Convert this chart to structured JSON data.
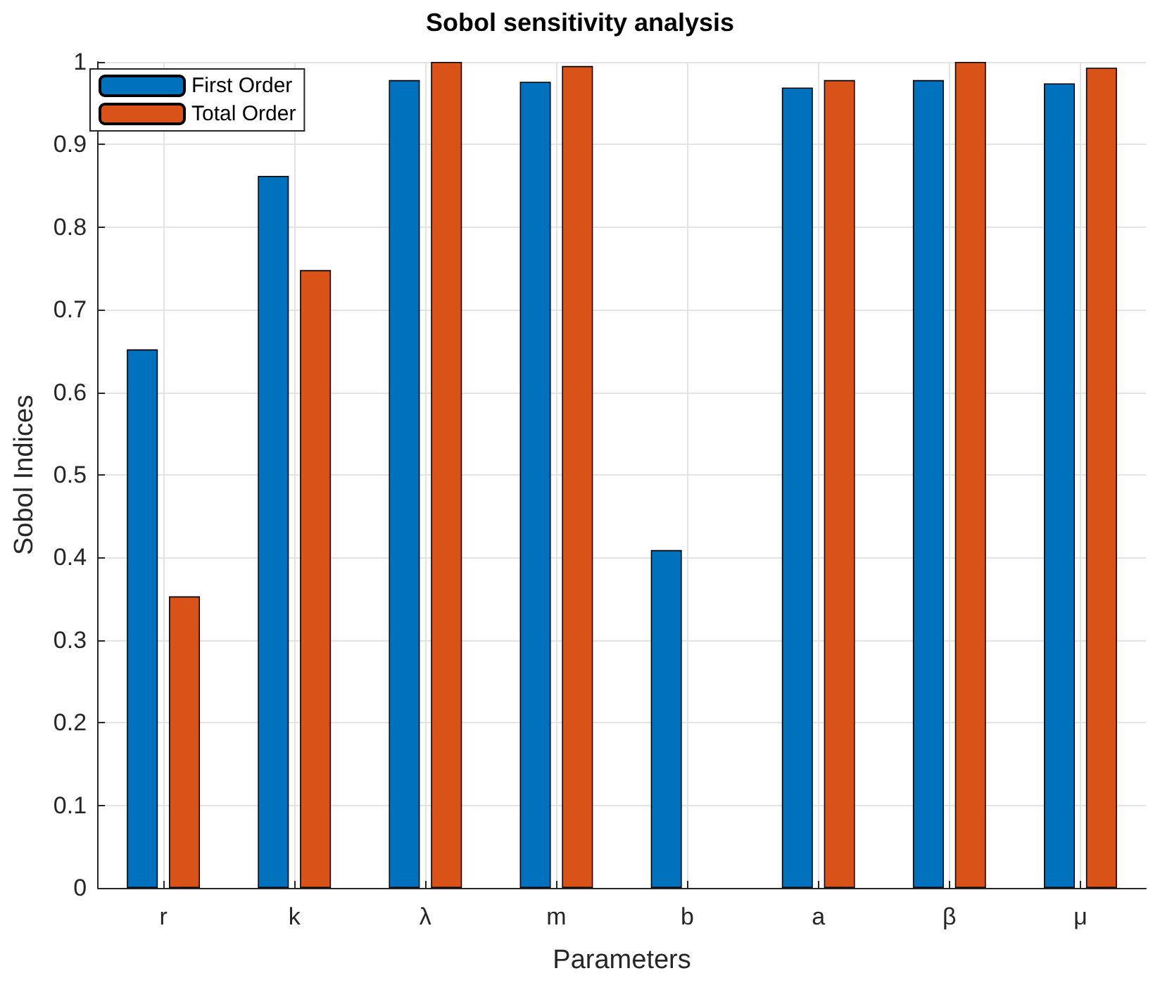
{
  "chart_data": {
    "type": "bar",
    "title": "Sobol sensitivity analysis",
    "xlabel": "Parameters",
    "ylabel": "Sobol Indices",
    "categories": [
      "r",
      "k",
      "λ",
      "m",
      "b",
      "a",
      "β",
      "μ"
    ],
    "series": [
      {
        "name": "First Order",
        "color": "#0072bd",
        "values": [
          0.652,
          0.862,
          0.978,
          0.976,
          0.409,
          0.969,
          0.978,
          0.974
        ]
      },
      {
        "name": "Total Order",
        "color": "#d95319",
        "values": [
          0.353,
          0.748,
          1.0,
          0.995,
          null,
          0.978,
          1.0,
          0.993
        ]
      }
    ],
    "ylim": [
      0,
      1
    ],
    "yticks": [
      0,
      0.1,
      0.2,
      0.3,
      0.4,
      0.5,
      0.6,
      0.7,
      0.8,
      0.9,
      1
    ],
    "grid": true,
    "legend": "top left"
  }
}
